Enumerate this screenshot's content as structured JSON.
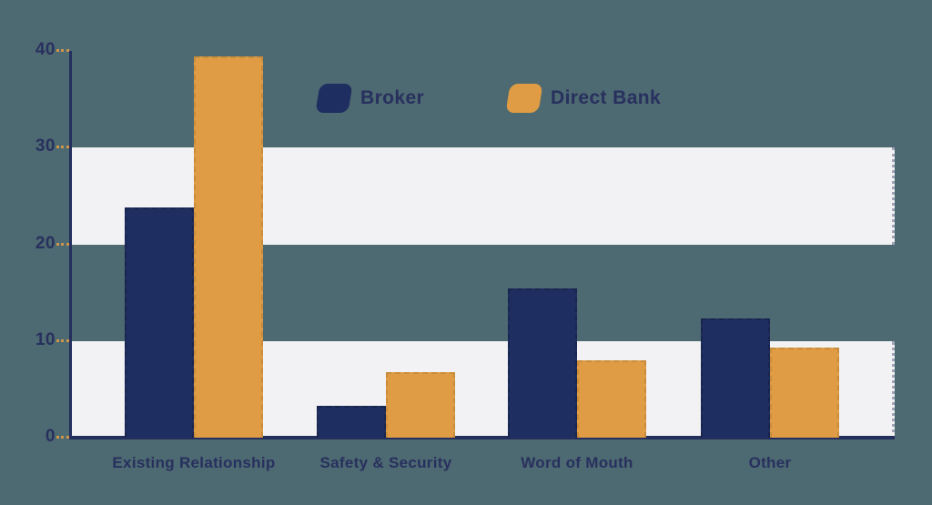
{
  "chart_data": {
    "type": "bar",
    "title": "",
    "xlabel": "",
    "ylabel": "",
    "categories": [
      "Existing Relationship",
      "Safety & Security",
      "Word of Mouth",
      "Other"
    ],
    "series": [
      {
        "name": "Broker",
        "color": "#1f2e60",
        "border_color": "#19254e",
        "values": [
          23.8,
          3.3,
          15.4,
          12.3
        ]
      },
      {
        "name": "Direct Bank",
        "color": "#df9c44",
        "border_color": "#c88c3a",
        "values": [
          39.4,
          6.8,
          8.0,
          9.3
        ]
      }
    ],
    "y_ticks": [
      "40",
      "30",
      "20",
      "10",
      "0"
    ],
    "y_tick_values": [
      40,
      30,
      20,
      10,
      0
    ],
    "ylim": [
      0,
      40
    ],
    "grid_bands": [
      {
        "from": 20,
        "to": 30
      },
      {
        "from": 0,
        "to": 10
      }
    ],
    "grid": "banded",
    "legend_position": "top-center",
    "colors": {
      "background": "#4d6971",
      "band": "#f2f2f4",
      "axis": "#242f5d",
      "tick": "#d0954a",
      "text": "#28305e"
    }
  }
}
